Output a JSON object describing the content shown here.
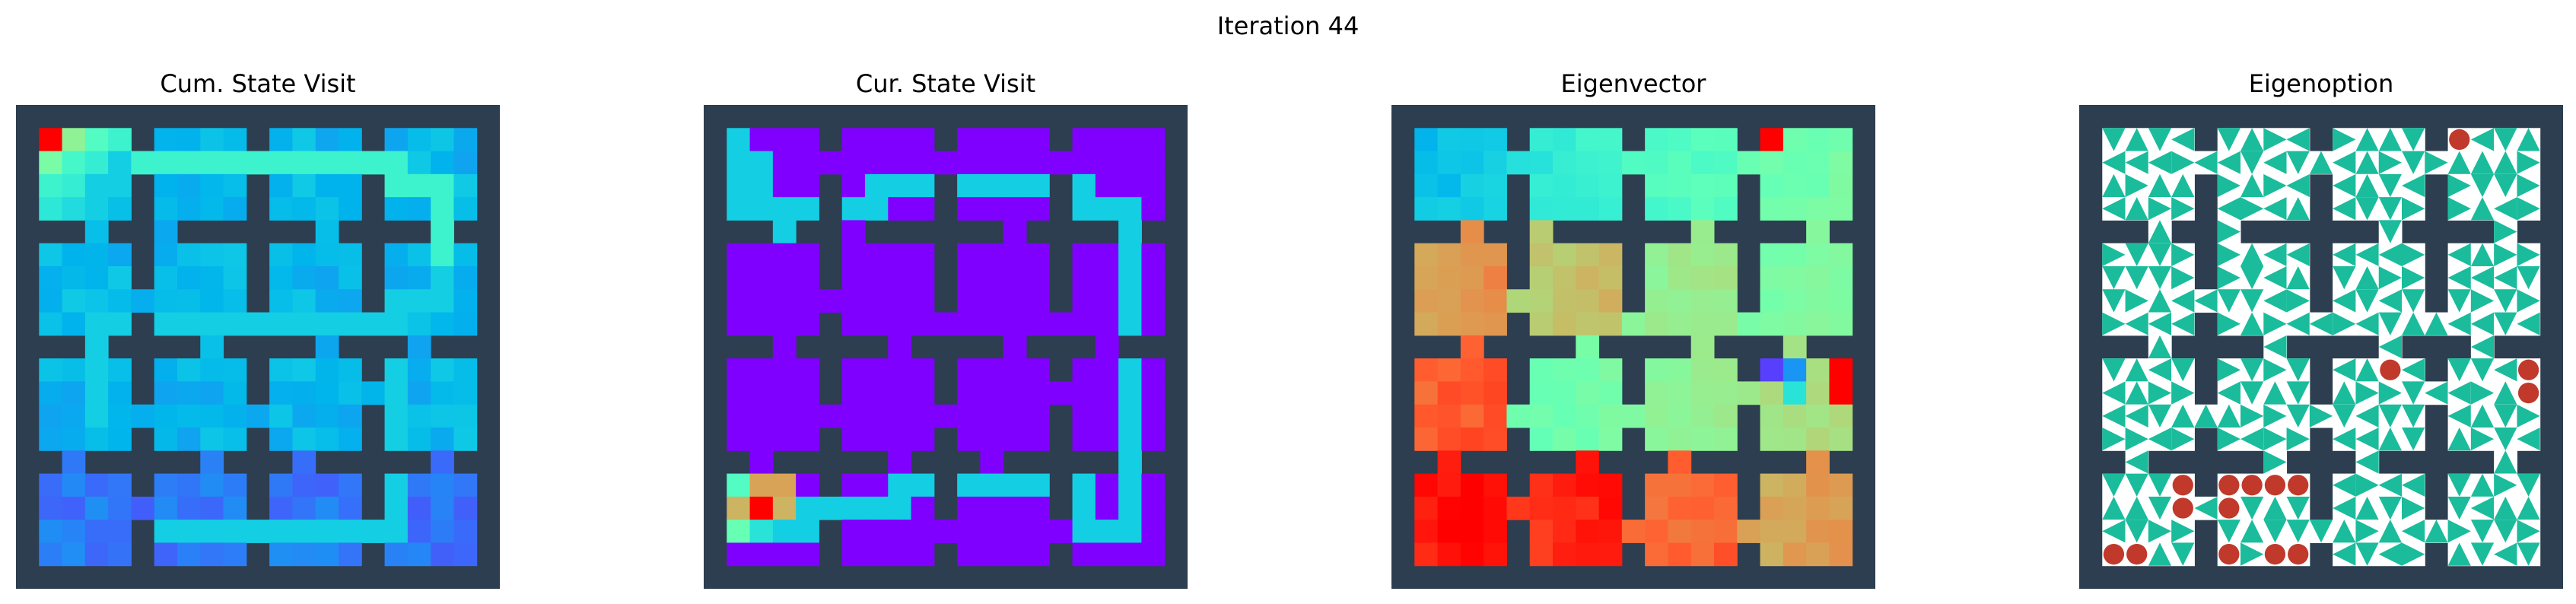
{
  "figure": {
    "suptitle": "Iteration 44"
  },
  "colors": {
    "wall": "#2c3e50",
    "option_arrow": "#1abc9c",
    "option_terminal": "#c0392b",
    "colormap": "rainbow"
  },
  "chart_data": [
    {
      "type": "heatmap",
      "title": "Cum. State Visit",
      "grid": "20x20 gridworld, 4x4 rooms with 1-cell doorways",
      "colormap": "rainbow",
      "description_values": "relative visit counts, 0 (purple) to 1 (red)",
      "peak_cell": [
        1,
        1
      ],
      "bright_cells": [
        [
          1,
          1,
          1.0
        ],
        [
          2,
          1,
          0.6
        ],
        [
          1,
          2,
          0.55
        ],
        [
          3,
          1,
          0.45
        ],
        [
          4,
          1,
          0.4
        ],
        [
          1,
          3,
          0.4
        ],
        [
          2,
          2,
          0.42
        ],
        [
          3,
          2,
          0.38
        ],
        [
          2,
          3,
          0.38
        ],
        [
          1,
          4,
          0.36
        ],
        [
          2,
          4,
          0.33
        ],
        [
          3,
          3,
          0.3
        ],
        [
          4,
          2,
          0.3
        ],
        [
          4,
          3,
          0.3
        ],
        [
          3,
          4,
          0.3
        ]
      ],
      "bright_path": [
        [
          1,
          2
        ],
        [
          2,
          2
        ],
        [
          3,
          2
        ],
        [
          4,
          2
        ],
        [
          5,
          2
        ],
        [
          6,
          2
        ],
        [
          7,
          2
        ],
        [
          8,
          2
        ],
        [
          9,
          2
        ],
        [
          10,
          2
        ],
        [
          11,
          2
        ],
        [
          12,
          2
        ],
        [
          13,
          2
        ],
        [
          14,
          2
        ],
        [
          15,
          2
        ],
        [
          16,
          2
        ],
        [
          16,
          3
        ],
        [
          17,
          3
        ],
        [
          18,
          3
        ],
        [
          18,
          4
        ],
        [
          18,
          5
        ],
        [
          18,
          6
        ]
      ],
      "mid_path": [
        [
          18,
          7
        ],
        [
          18,
          8
        ],
        [
          17,
          8
        ],
        [
          16,
          8
        ],
        [
          16,
          9
        ],
        [
          15,
          9
        ],
        [
          14,
          9
        ],
        [
          13,
          9
        ],
        [
          12,
          9
        ],
        [
          11,
          9
        ],
        [
          10,
          9
        ],
        [
          9,
          9
        ],
        [
          8,
          9
        ],
        [
          7,
          9
        ],
        [
          6,
          9
        ],
        [
          5,
          9
        ],
        [
          4,
          9
        ],
        [
          3,
          9
        ],
        [
          3,
          10
        ],
        [
          3,
          11
        ],
        [
          3,
          12
        ],
        [
          3,
          13
        ],
        [
          16,
          10
        ],
        [
          16,
          11
        ],
        [
          16,
          12
        ],
        [
          16,
          13
        ],
        [
          16,
          14
        ],
        [
          16,
          15
        ],
        [
          16,
          16
        ],
        [
          16,
          17
        ],
        [
          16,
          18
        ],
        [
          15,
          18
        ],
        [
          14,
          18
        ],
        [
          13,
          18
        ],
        [
          12,
          18
        ],
        [
          11,
          18
        ],
        [
          10,
          18
        ],
        [
          9,
          18
        ],
        [
          8,
          18
        ],
        [
          7,
          18
        ],
        [
          6,
          18
        ],
        [
          5,
          18
        ]
      ],
      "low_value": 0.12,
      "mid_value": 0.28,
      "path_value": 0.34
    },
    {
      "type": "heatmap",
      "title": "Cur. State Visit",
      "colormap": "rainbow",
      "description_values": "relative visit counts, 0 (purple) to 1 (red)",
      "hot_cells": [
        [
          2,
          17,
          1.0
        ],
        [
          1,
          17,
          0.75
        ],
        [
          3,
          16,
          0.78
        ],
        [
          3,
          17,
          0.75
        ],
        [
          2,
          16,
          0.78
        ],
        [
          1,
          16,
          0.45
        ],
        [
          1,
          18,
          0.5
        ],
        [
          2,
          18,
          0.35
        ]
      ],
      "path": [
        [
          1,
          1
        ],
        [
          1,
          2
        ],
        [
          1,
          3
        ],
        [
          1,
          4
        ],
        [
          2,
          2
        ],
        [
          2,
          3
        ],
        [
          2,
          4
        ],
        [
          2,
          5
        ],
        [
          3,
          4
        ],
        [
          3,
          5
        ],
        [
          4,
          4
        ],
        [
          5,
          4
        ],
        [
          6,
          4
        ],
        [
          7,
          4
        ],
        [
          7,
          3
        ],
        [
          8,
          3
        ],
        [
          9,
          3
        ],
        [
          10,
          3
        ],
        [
          11,
          3
        ],
        [
          12,
          3
        ],
        [
          13,
          3
        ],
        [
          14,
          3
        ],
        [
          15,
          3
        ],
        [
          16,
          3
        ],
        [
          16,
          4
        ],
        [
          17,
          4
        ],
        [
          18,
          4
        ],
        [
          18,
          5
        ],
        [
          18,
          6
        ],
        [
          18,
          7
        ],
        [
          18,
          8
        ],
        [
          18,
          9
        ],
        [
          18,
          10
        ],
        [
          18,
          11
        ],
        [
          18,
          12
        ],
        [
          18,
          13
        ],
        [
          18,
          14
        ],
        [
          18,
          15
        ],
        [
          18,
          16
        ],
        [
          18,
          17
        ],
        [
          18,
          18
        ],
        [
          17,
          18
        ],
        [
          16,
          18
        ],
        [
          16,
          17
        ],
        [
          16,
          16
        ],
        [
          15,
          16
        ],
        [
          14,
          16
        ],
        [
          13,
          16
        ],
        [
          12,
          16
        ],
        [
          11,
          16
        ],
        [
          10,
          16
        ],
        [
          9,
          16
        ],
        [
          8,
          16
        ],
        [
          8,
          17
        ],
        [
          7,
          17
        ],
        [
          6,
          17
        ],
        [
          5,
          17
        ],
        [
          4,
          17
        ],
        [
          4,
          18
        ],
        [
          3,
          18
        ],
        [
          2,
          18
        ]
      ],
      "path_value": 0.3
    },
    {
      "type": "heatmap",
      "title": "Eigenvector",
      "colormap": "rainbow",
      "description_values": "eigenvector component per state, normalized 0..1",
      "room_values": [
        [
          0.28,
          0.38,
          0.45,
          0.52
        ],
        [
          0.8,
          0.72,
          0.62,
          0.55
        ],
        [
          0.88,
          0.52,
          0.6,
          0.66
        ],
        [
          0.98,
          0.95,
          0.86,
          0.78
        ]
      ],
      "max_cells": [
        [
          16,
          1
        ],
        [
          19,
          11
        ],
        [
          19,
          12
        ]
      ],
      "special_cells": [
        [
          16,
          11,
          0.08
        ],
        [
          17,
          11,
          0.2
        ],
        [
          17,
          12,
          0.35
        ]
      ]
    },
    {
      "type": "table",
      "title": "Eigenoption",
      "description": "policy arrows per cell (triangles) and terminal states (red circles)",
      "terminal_cells": [
        [
          16,
          1
        ],
        [
          13,
          11
        ],
        [
          19,
          11
        ],
        [
          19,
          12
        ],
        [
          4,
          16
        ],
        [
          4,
          17
        ],
        [
          6,
          16
        ],
        [
          7,
          16
        ],
        [
          8,
          16
        ],
        [
          9,
          16
        ],
        [
          6,
          17
        ],
        [
          1,
          19
        ],
        [
          2,
          19
        ],
        [
          6,
          19
        ],
        [
          8,
          19
        ],
        [
          9,
          19
        ]
      ]
    }
  ]
}
